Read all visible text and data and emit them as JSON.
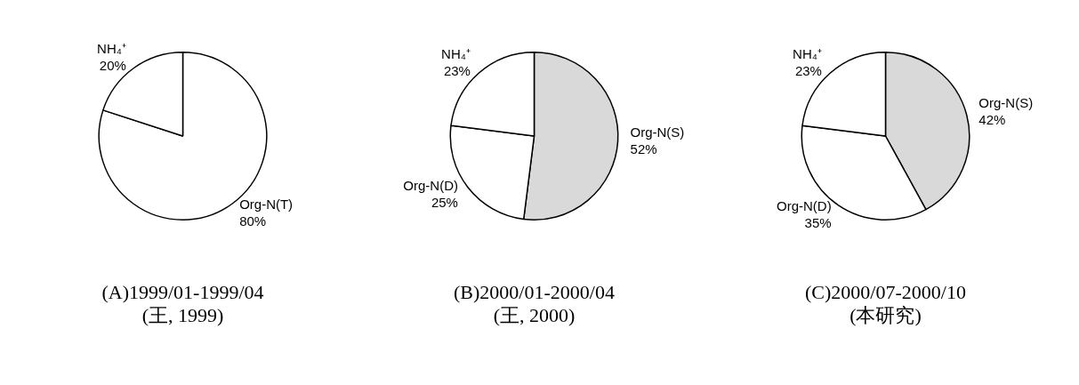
{
  "chart_data": [
    {
      "type": "pie",
      "title": "(A)1999/01-1999/04",
      "subtitle": "(王, 1999)",
      "categories": [
        "Org-N(T)",
        "NH₄⁺"
      ],
      "values": [
        80,
        20
      ],
      "colors": [
        "#ffffff",
        "#ffffff"
      ],
      "value_labels": [
        "80%",
        "20%"
      ]
    },
    {
      "type": "pie",
      "title": "(B)2000/01-2000/04",
      "subtitle": "(王, 2000)",
      "categories": [
        "Org-N(S)",
        "Org-N(D)",
        "NH₄⁺"
      ],
      "values": [
        52,
        25,
        23
      ],
      "colors": [
        "#d9d9d9",
        "#ffffff",
        "#ffffff"
      ],
      "value_labels": [
        "52%",
        "25%",
        "23%"
      ]
    },
    {
      "type": "pie",
      "title": "(C)2000/07-2000/10",
      "subtitle": "(本研究)",
      "categories": [
        "Org-N(S)",
        "Org-N(D)",
        "NH₄⁺"
      ],
      "values": [
        42,
        35,
        23
      ],
      "colors": [
        "#d9d9d9",
        "#ffffff",
        "#ffffff"
      ],
      "value_labels": [
        "42%",
        "35%",
        "23%"
      ]
    }
  ]
}
